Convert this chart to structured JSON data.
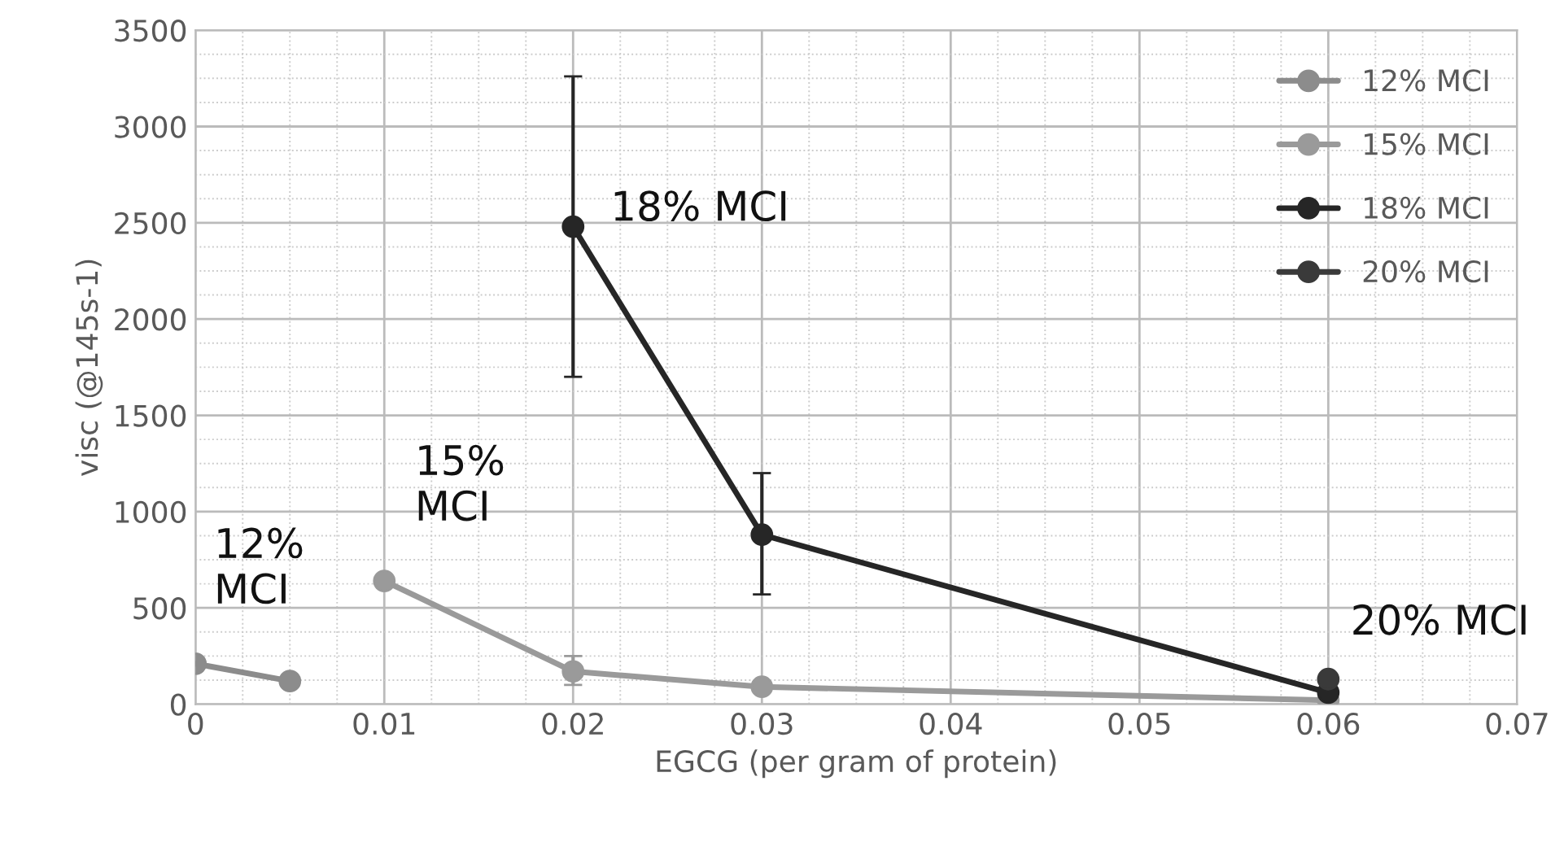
{
  "chart_data": {
    "type": "line",
    "xlabel": "EGCG (per gram of protein)",
    "ylabel": "visc (@145s-1)",
    "xlim": [
      0,
      0.07
    ],
    "xticks": [
      0,
      0.01,
      0.02,
      0.03,
      0.04,
      0.05,
      0.06,
      0.07
    ],
    "ylim": [
      0,
      3500
    ],
    "yticks": [
      0,
      500,
      1000,
      1500,
      2000,
      2500,
      3000,
      3500
    ],
    "grid": true,
    "legend": "right",
    "marker": "circle",
    "line_style": "solid",
    "series": [
      {
        "name": "12% MCI",
        "color": "#8c8c8c",
        "x": [
          0,
          0.005
        ],
        "values": [
          210,
          120
        ]
      },
      {
        "name": "15% MCI",
        "color": "#9a9a9a",
        "x": [
          0.01,
          0.02,
          0.03,
          0.06
        ],
        "values": [
          640,
          170,
          90,
          20
        ],
        "errors": [
          null,
          [
            100,
            250
          ],
          null,
          null
        ]
      },
      {
        "name": "18% MCI",
        "color": "#262626",
        "x": [
          0.02,
          0.03,
          0.06
        ],
        "values": [
          2480,
          880,
          60
        ],
        "errors": [
          [
            1700,
            3260
          ],
          [
            570,
            1200
          ],
          null
        ]
      },
      {
        "name": "20% MCI",
        "color": "#3a3a3a",
        "x": [
          0.06
        ],
        "values": [
          130
        ]
      }
    ],
    "annotations": [
      "12%\nMCI",
      "15%\nMCI",
      "18% MCI",
      "20% MCI"
    ]
  }
}
